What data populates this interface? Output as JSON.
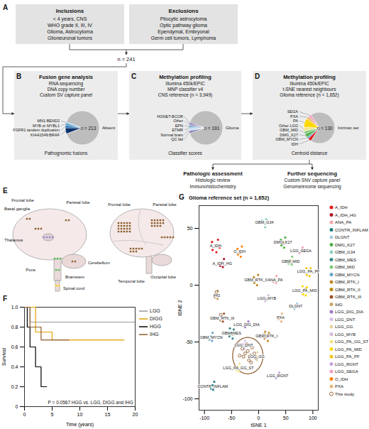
{
  "diagram": {
    "A": {
      "letter": "A",
      "inclusions": {
        "title": "Inclusions",
        "items": [
          "< 4 years, CNS",
          "WHO grade II, III, IV",
          "Glioma, Astrocytoma",
          "Glioneuronal tumors"
        ]
      },
      "exclusions": {
        "title": "Exclusions",
        "items": [
          "Pilocytic astrocytoma",
          "Optic pathway glioma",
          "Ependymal, Embryonal",
          "Germ cell tumors, Lymphoma"
        ]
      },
      "total": "n = 241"
    },
    "B": {
      "letter": "B",
      "title": "Fusion gene analysis",
      "methods": [
        "RNA sequencing",
        "DNA copy number",
        "Custom SV capture panel"
      ],
      "caption": "Pathognomic fusions",
      "pie": {
        "main": {
          "label": "Absent",
          "text": "n = 213",
          "value": 213,
          "color": "#bdbdbd"
        },
        "slices": [
          {
            "label": "KIAA1549:BRAF",
            "value": 14,
            "color": "#08306b"
          },
          {
            "label": "FGFR1 tandem duplication",
            "value": 6,
            "color": "#2171b5"
          },
          {
            "label": "MYB or MYBL1",
            "value": 5,
            "color": "#4292c6"
          },
          {
            "label": "MN1:BEND2",
            "value": 3,
            "color": "#6baed6"
          }
        ]
      }
    },
    "C": {
      "letter": "C",
      "title": "Methylation profiling",
      "methods": [
        "Illumina 450k/EPIC",
        "MNP classifier v4",
        "CNS reference (n = 3,949)"
      ],
      "caption": "Classifier scores",
      "pie": {
        "main": {
          "label": "Glioma",
          "text": "n = 191",
          "value": 191,
          "color": "#bdbdbd"
        },
        "slices": [
          {
            "label": "QC fail",
            "value": 5,
            "color": "#756bb1"
          },
          {
            "label": "Normal brain",
            "value": 5,
            "color": "#c6dbef"
          },
          {
            "label": "ETMR",
            "value": 2,
            "color": "#6baed6"
          },
          {
            "label": "EPN",
            "value": 3,
            "color": "#3182bd"
          },
          {
            "label": "Other",
            "value": 4,
            "color": "#9e9ac8"
          },
          {
            "label": "HGNET-BCOR",
            "value": 3,
            "color": "#6a51a3"
          }
        ]
      }
    },
    "D": {
      "letter": "D",
      "title": "Methylation profiling",
      "methods": [
        "Illumina 450k/EPIC",
        "t-SNE nearest neighbours",
        "Glioma reference (n = 1,652)"
      ],
      "caption": "Centroid distance",
      "pie": {
        "main": {
          "label": "Intrinsic set",
          "text": "n = 130",
          "value": 130,
          "color": "#bdbdbd"
        },
        "slices": [
          {
            "label": "IDH",
            "value": 7,
            "color": "#e41a1c"
          },
          {
            "label": "GBM_MYCN",
            "value": 4,
            "color": "#66a6c8"
          },
          {
            "label": "DMG_K27",
            "value": 7,
            "color": "#4daf4a"
          },
          {
            "label": "GBM_MID",
            "value": 6,
            "color": "#7fc97f"
          },
          {
            "label": "Other LGG",
            "value": 8,
            "color": "#f0e68c"
          },
          {
            "label": "PA",
            "value": 18,
            "color": "#ffd700"
          },
          {
            "label": "PXA",
            "value": 6,
            "color": "#e8b77d"
          },
          {
            "label": "SEGA",
            "value": 5,
            "color": "#f49ac2"
          }
        ]
      }
    },
    "followup": [
      {
        "title": "Pathologic assessment",
        "items": [
          "Histologic review",
          "Immunohistochemistry"
        ]
      },
      {
        "title": "Further sequencing",
        "items": [
          "Custom SNV capture panel",
          "Genome/exome sequencing"
        ]
      }
    ],
    "E": {
      "letter": "E",
      "views": [
        {
          "sites": [
            {
              "label": "Frontal lobe",
              "n": 2,
              "color": "#8b5a2b"
            },
            {
              "label": "Basal ganglia",
              "n": 3,
              "color": "#8b5a2b"
            },
            {
              "label": "Parietal lobe",
              "n": 2,
              "color": "#8b5a2b"
            },
            {
              "label": "Thalamus",
              "n": 4,
              "color": "#9e7ac6"
            },
            {
              "label": "Pons",
              "n": 3,
              "color": "#4daf4a"
            },
            {
              "label": "Cerebellum",
              "n": 2,
              "color": "#8b5a2b"
            },
            {
              "label": "Brainstem",
              "n": 2,
              "color": "#4daf4a"
            },
            {
              "label": "Spinal cord",
              "n": 2,
              "color": "#f5c518"
            }
          ]
        },
        {
          "sites": [
            {
              "label": "Frontal lobe",
              "n": 20,
              "color": "#8b5a2b"
            },
            {
              "label": "Parietal lobe",
              "n": 14,
              "color": "#8b5a2b"
            },
            {
              "label": "Temporal lobe",
              "n": 8,
              "color": "#8b5a2b"
            },
            {
              "label": "Occipital lobe",
              "n": 5,
              "color": "#8b5a2b"
            }
          ]
        }
      ]
    }
  },
  "chart_data": [
    {
      "type": "line",
      "letter": "F",
      "xlabel": "Time (years)",
      "ylabel": "Survival",
      "xlim": [
        0,
        20
      ],
      "ylim": [
        0,
        1
      ],
      "xticks": [
        0,
        5,
        10,
        15,
        20
      ],
      "yticks": [
        0,
        0.2,
        0.4,
        0.6,
        0.8,
        {
          "value": 1,
          "label": "1.0"
        }
      ],
      "annotation": "P = 0.0567 HGG vs. LGG, DIGG and IHG",
      "legend": "right",
      "line_style": "step",
      "series": [
        {
          "name": "LGG",
          "color": "#999999",
          "x": [
            0,
            1,
            20
          ],
          "values": [
            1,
            0.85,
            0.85
          ]
        },
        {
          "name": "DIGG",
          "color": "#e69f00",
          "x": [
            0,
            2,
            5,
            18
          ],
          "values": [
            1,
            0.75,
            0.67,
            0.67
          ]
        },
        {
          "name": "HGG",
          "color": "#000000",
          "x": [
            0,
            0.5,
            1,
            2,
            3,
            4
          ],
          "values": [
            1,
            0.8,
            0.6,
            0.4,
            0.2,
            0.2
          ]
        },
        {
          "name": "IHG",
          "color": "#8b5a2b",
          "x": [
            0,
            1,
            3,
            8
          ],
          "values": [
            1,
            0.8,
            0.67,
            0.67
          ]
        }
      ]
    },
    {
      "type": "scatter",
      "letter": "G",
      "title": "Glioma reference set (n = 1,652)",
      "xlabel": "tSNE 1",
      "ylabel": "tSNE 2",
      "xlim": [
        -110,
        110
      ],
      "ylim": [
        -110,
        70
      ],
      "xticks": [
        -100,
        -50,
        0,
        50,
        100
      ],
      "yticks": [
        -100,
        -50,
        0,
        50
      ],
      "legend": "right",
      "highlight": {
        "x": -20,
        "y": -62,
        "rx": 28,
        "ry": 16,
        "color": "#8b5a2b"
      },
      "series": [
        {
          "name": "A_IDH",
          "color": "#e41a1c",
          "marker": "dot",
          "points": [
            [
              -80,
              35
            ],
            [
              -75,
              40
            ],
            [
              -86,
              38
            ],
            [
              -78,
              29
            ],
            [
              -85,
              31
            ],
            [
              -72,
              33
            ]
          ]
        },
        {
          "name": "A_IDH_HG",
          "color": "#b2182b",
          "marker": "dot",
          "points": [
            [
              -68,
              20
            ],
            [
              -64,
              23
            ],
            [
              -71,
              17
            ],
            [
              -66,
              16
            ]
          ]
        },
        {
          "name": "ANA_PA",
          "color": "#f4a6a6",
          "marker": "dot",
          "points": [
            [
              30,
              5
            ],
            [
              33,
              8
            ],
            [
              27,
              3
            ],
            [
              32,
              2
            ]
          ]
        },
        {
          "name": "CONTR_INFLAM",
          "color": "#1b7c7c",
          "marker": "dot",
          "points": [
            [
              -85,
              -88
            ],
            [
              -82,
              -85
            ],
            [
              -88,
              -91
            ],
            [
              -84,
              -92
            ]
          ]
        },
        {
          "name": "DLGNT",
          "color": "#a6cee3",
          "marker": "dot",
          "points": [
            [
              68,
              -18
            ],
            [
              71,
              -16
            ],
            [
              66,
              -21
            ]
          ]
        },
        {
          "name": "DMG_K27",
          "color": "#4daf4a",
          "marker": "dot",
          "points": [
            [
              45,
              38
            ],
            [
              49,
              42
            ],
            [
              41,
              40
            ],
            [
              47,
              33
            ],
            [
              42,
              35
            ]
          ]
        },
        {
          "name": "GBM_G34",
          "color": "#8dd3c7",
          "marker": "dot",
          "points": [
            [
              10,
              55
            ],
            [
              14,
              58
            ],
            [
              6,
              57
            ],
            [
              12,
              51
            ]
          ]
        },
        {
          "name": "GBM_MES",
          "color": "#3a8a8a",
          "marker": "dot",
          "points": [
            [
              -50,
              -42
            ],
            [
              -46,
              -39
            ],
            [
              -54,
              -45
            ],
            [
              -48,
              -47
            ],
            [
              -53,
              -38
            ]
          ]
        },
        {
          "name": "GBM_MID",
          "color": "#7fc97f",
          "marker": "dot",
          "points": [
            [
              58,
              22
            ],
            [
              62,
              25
            ],
            [
              55,
              19
            ],
            [
              61,
              18
            ]
          ]
        },
        {
          "name": "GBM_MYCN",
          "color": "#66a6c8",
          "marker": "dot",
          "points": [
            [
              -88,
              -45
            ],
            [
              -85,
              -42
            ],
            [
              -91,
              -48
            ],
            [
              -86,
              -49
            ]
          ]
        },
        {
          "name": "GBM_RTK_I",
          "color": "#c08a2d",
          "marker": "dot",
          "points": [
            [
              15,
              -45
            ],
            [
              19,
              -42
            ],
            [
              11,
              -47
            ],
            [
              17,
              -49
            ],
            [
              12,
              -41
            ]
          ]
        },
        {
          "name": "GBM_RTK_II",
          "color": "#b8860b",
          "marker": "dot",
          "points": [
            [
              -5,
              5
            ],
            [
              -1,
              9
            ],
            [
              -9,
              7
            ],
            [
              -3,
              0
            ],
            [
              -8,
              2
            ]
          ]
        },
        {
          "name": "GBM_RTK_III",
          "color": "#a0522d",
          "marker": "dot",
          "points": [
            [
              -68,
              -28
            ],
            [
              -64,
              -25
            ],
            [
              -71,
              -31
            ],
            [
              -66,
              -32
            ]
          ]
        },
        {
          "name": "IHG",
          "color": "#c9a46b",
          "marker": "dot",
          "points": [
            [
              -78,
              -8
            ],
            [
              -75,
              -5
            ],
            [
              -81,
              -11
            ],
            [
              -76,
              -12
            ]
          ]
        },
        {
          "name": "LGG_DIG_DIA",
          "color": "#9e7ac6",
          "marker": "dot",
          "points": [
            [
              -22,
              -35
            ],
            [
              -19,
              -32
            ],
            [
              -25,
              -37
            ]
          ]
        },
        {
          "name": "LGG_DNT",
          "color": "#d8c0e8",
          "marker": "dot",
          "points": [
            [
              -28,
              -52
            ],
            [
              -25,
              -49
            ],
            [
              -31,
              -54
            ],
            [
              -26,
              -56
            ]
          ]
        },
        {
          "name": "LGG_GG",
          "color": "#e5d3a2",
          "marker": "dot",
          "points": [
            [
              -5,
              -62
            ],
            [
              -2,
              -59
            ],
            [
              -8,
              -64
            ],
            [
              -3,
              -66
            ]
          ]
        },
        {
          "name": "LGG_MYB",
          "color": "#d4b9da",
          "marker": "dot",
          "points": [
            [
              15,
              -12
            ],
            [
              18,
              -9
            ],
            [
              12,
              -14
            ]
          ]
        },
        {
          "name": "LGG_PA_GG_ST",
          "color": "#f0e68c",
          "marker": "dot",
          "points": [
            [
              -38,
              -72
            ],
            [
              -35,
              -69
            ],
            [
              -41,
              -75
            ],
            [
              -36,
              -76
            ]
          ]
        },
        {
          "name": "LGG_PA_MID",
          "color": "#ffd700",
          "marker": "dot",
          "points": [
            [
              85,
              -5
            ],
            [
              89,
              -2
            ],
            [
              82,
              -8
            ],
            [
              87,
              -9
            ],
            [
              81,
              -1
            ]
          ]
        },
        {
          "name": "LGG_PA_PF",
          "color": "#f5c518",
          "marker": "dot",
          "points": [
            [
              92,
              12
            ],
            [
              96,
              15
            ],
            [
              89,
              9
            ],
            [
              94,
              8
            ],
            [
              88,
              15
            ]
          ]
        },
        {
          "name": "LGG_RGNT",
          "color": "#c7a3e0",
          "marker": "dot",
          "points": [
            [
              35,
              -80
            ],
            [
              38,
              -77
            ],
            [
              32,
              -82
            ]
          ]
        },
        {
          "name": "LGG_SEGA",
          "color": "#f49ac2",
          "marker": "dot",
          "points": [
            [
              78,
              30
            ],
            [
              81,
              33
            ],
            [
              75,
              28
            ]
          ]
        },
        {
          "name": "O_IDH",
          "color": "#ff7f00",
          "marker": "dot",
          "points": [
            [
              -35,
              30
            ],
            [
              -31,
              34
            ],
            [
              -39,
              32
            ],
            [
              -33,
              25
            ],
            [
              -38,
              27
            ]
          ]
        },
        {
          "name": "PXA",
          "color": "#e8b77d",
          "marker": "dot",
          "points": [
            [
              40,
              -28
            ],
            [
              43,
              -25
            ],
            [
              37,
              -30
            ],
            [
              42,
              -32
            ]
          ]
        },
        {
          "name": "This study",
          "color": "#8b5a2b",
          "marker": "circle",
          "points": [
            [
              -20,
              -58
            ],
            [
              -15,
              -62
            ],
            [
              -25,
              -60
            ],
            [
              -12,
              -55
            ],
            [
              -28,
              -63
            ],
            [
              -18,
              -66
            ],
            [
              -8,
              -60
            ],
            [
              -30,
              -56
            ],
            [
              -22,
              -52
            ],
            [
              -5,
              -64
            ],
            [
              -35,
              -62
            ],
            [
              -14,
              -68
            ],
            [
              -78,
              -6
            ],
            [
              -70,
              -26
            ],
            [
              10,
              -44
            ],
            [
              44,
              37
            ],
            [
              -34,
              29
            ],
            [
              86,
              -4
            ],
            [
              -48,
              -43
            ],
            [
              57,
              21
            ]
          ]
        }
      ]
    }
  ]
}
